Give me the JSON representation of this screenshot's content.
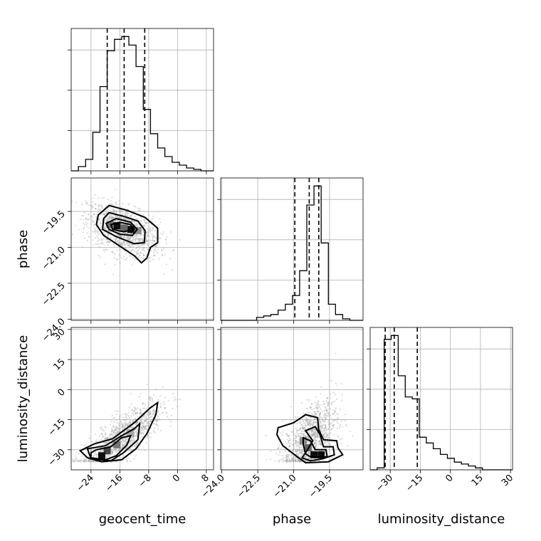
{
  "chart_data": {
    "type": "corner",
    "parameters": [
      "geocent_time",
      "phase",
      "luminosity_distance"
    ],
    "axis_labels": {
      "geocent_time": "geocent_time",
      "phase": "phase",
      "luminosity_distance": "luminosity_distance"
    },
    "ranges": {
      "geocent_time": [
        -29.5,
        10.0
      ],
      "phase": [
        -24.05,
        -18.1
      ],
      "luminosity_distance": [
        -40.0,
        31.0
      ]
    },
    "ticks": {
      "geocent_time": [
        "−24",
        "−16",
        "−8",
        "0",
        "8"
      ],
      "phase": [
        "−24.0",
        "−22.5",
        "−21.0",
        "−19.5"
      ],
      "luminosity_distance": [
        "−30",
        "−15",
        "0",
        "15",
        "30"
      ]
    },
    "tick_values": {
      "geocent_time": [
        -24,
        -16,
        -8,
        0,
        8
      ],
      "phase": [
        -24.0,
        -22.5,
        -21.0,
        -19.5
      ],
      "luminosity_distance": [
        -30,
        -15,
        0,
        15,
        30
      ]
    },
    "grid": true,
    "quantiles": {
      "geocent_time": [
        -19.5,
        -14.8,
        -9.1
      ],
      "phase": [
        -20.95,
        -20.35,
        -19.95
      ],
      "luminosity_distance": [
        -32.5,
        -28.0,
        -16.5
      ]
    },
    "histograms": {
      "geocent_time": {
        "edges": [
          -29.5,
          -27.5,
          -25.5,
          -23.5,
          -21.5,
          -19.5,
          -17.5,
          -15.5,
          -13.5,
          -11.5,
          -9.5,
          -7.5,
          -5.5,
          -3.5,
          -1.5,
          0.5,
          2.5,
          4.5,
          6.5,
          8.5,
          10.0
        ],
        "counts": [
          0,
          3,
          8,
          27,
          59,
          84,
          92,
          94,
          88,
          73,
          43,
          26,
          16,
          10,
          6,
          4,
          2,
          1,
          0,
          0
        ]
      },
      "phase": {
        "edges": [
          -24.05,
          -23.75,
          -23.45,
          -23.15,
          -22.85,
          -22.55,
          -22.25,
          -21.95,
          -21.65,
          -21.35,
          -21.05,
          -20.75,
          -20.45,
          -20.15,
          -19.85,
          -19.55,
          -19.25,
          -18.95,
          -18.65,
          -18.35,
          -18.1
        ],
        "counts": [
          0,
          0,
          0,
          0,
          0,
          2,
          3,
          4,
          7,
          11,
          17,
          34,
          79,
          92,
          53,
          11,
          4,
          1,
          0,
          0
        ]
      },
      "luminosity_distance": {
        "edges": [
          -40.0,
          -36.5,
          -33.0,
          -29.5,
          -26.0,
          -22.5,
          -19.0,
          -15.5,
          -12.0,
          -8.5,
          -5.0,
          -1.5,
          2.0,
          5.5,
          9.0,
          12.5,
          16.0,
          19.5,
          23.0,
          26.5,
          31.0
        ],
        "counts": [
          0,
          1,
          68,
          70,
          49,
          38,
          37,
          17,
          14,
          11,
          8,
          6,
          4,
          3,
          2,
          1,
          0,
          0,
          0,
          0
        ]
      }
    },
    "density_cells": [
      {
        "pair": "phase|geocent_time",
        "x": -16.8,
        "y": -20.1,
        "level": 0.95
      },
      {
        "pair": "phase|geocent_time",
        "x": -12.9,
        "y": -20.25,
        "level": 0.95
      },
      {
        "pair": "phase|geocent_time",
        "x": -14.8,
        "y": -20.2,
        "level": 0.6
      },
      {
        "pair": "phase|geocent_time",
        "x": -18.7,
        "y": -20.05,
        "level": 0.55
      },
      {
        "pair": "phase|geocent_time",
        "x": -11.0,
        "y": -20.3,
        "level": 0.45
      },
      {
        "pair": "luminosity_distance|geocent_time",
        "x": -19.5,
        "y": -30.5,
        "level": 0.75
      },
      {
        "pair": "luminosity_distance|geocent_time",
        "x": -21.0,
        "y": -33.0,
        "level": 0.95
      },
      {
        "pair": "luminosity_distance|geocent_time",
        "x": -16.8,
        "y": -27.5,
        "level": 0.55
      },
      {
        "pair": "luminosity_distance|geocent_time",
        "x": -13.0,
        "y": -21.5,
        "level": 0.35
      },
      {
        "pair": "luminosity_distance|phase",
        "x": -20.15,
        "y": -32.5,
        "level": 0.95
      },
      {
        "pair": "luminosity_distance|phase",
        "x": -19.85,
        "y": -32.5,
        "level": 0.95
      },
      {
        "pair": "luminosity_distance|phase",
        "x": -20.4,
        "y": -29.0,
        "level": 0.6
      },
      {
        "pair": "luminosity_distance|phase",
        "x": -20.6,
        "y": -25.5,
        "level": 0.45
      }
    ],
    "contours": {
      "phase|geocent_time": [
        [
          [
            -20.5,
            -19.8
          ],
          [
            -19.0,
            -19.55
          ],
          [
            -15.0,
            -19.7
          ],
          [
            -11.0,
            -19.9
          ],
          [
            -9.0,
            -20.3
          ],
          [
            -9.2,
            -20.8
          ],
          [
            -12.0,
            -20.85
          ],
          [
            -17.0,
            -20.55
          ],
          [
            -20.8,
            -20.25
          ]
        ],
        [
          [
            -19.8,
            -20.0
          ],
          [
            -17.0,
            -19.8
          ],
          [
            -13.0,
            -19.95
          ],
          [
            -11.2,
            -20.25
          ],
          [
            -12.5,
            -20.5
          ],
          [
            -16.0,
            -20.45
          ],
          [
            -19.0,
            -20.25
          ]
        ],
        [
          [
            -18.5,
            -20.05
          ],
          [
            -16.0,
            -19.95
          ],
          [
            -13.0,
            -20.05
          ],
          [
            -12.0,
            -20.25
          ],
          [
            -15.0,
            -20.35
          ],
          [
            -18.0,
            -20.25
          ]
        ],
        [
          [
            -22.0,
            -19.65
          ],
          [
            -19.0,
            -19.25
          ],
          [
            -14.0,
            -19.45
          ],
          [
            -9.0,
            -19.75
          ],
          [
            -5.5,
            -20.2
          ],
          [
            -5.5,
            -20.8
          ],
          [
            -7.5,
            -21.0
          ],
          [
            -8.5,
            -21.45
          ],
          [
            -10.0,
            -21.65
          ],
          [
            -12.0,
            -21.35
          ],
          [
            -16.0,
            -20.95
          ],
          [
            -20.5,
            -20.5
          ],
          [
            -22.5,
            -20.05
          ]
        ]
      ],
      "luminosity_distance|geocent_time": [
        [
          [
            -24.0,
            -34.0
          ],
          [
            -20.0,
            -35.0
          ],
          [
            -17.0,
            -33.0
          ],
          [
            -14.0,
            -27.5
          ],
          [
            -13.0,
            -23.0
          ],
          [
            -15.5,
            -24.0
          ],
          [
            -18.5,
            -28.5
          ],
          [
            -22.5,
            -30.0
          ],
          [
            -24.0,
            -31.5
          ]
        ],
        [
          [
            -25.0,
            -29.5
          ],
          [
            -20.0,
            -28.0
          ],
          [
            -15.5,
            -23.0
          ],
          [
            -12.0,
            -19.5
          ],
          [
            -10.5,
            -17.0
          ],
          [
            -11.0,
            -25.0
          ],
          [
            -15.0,
            -31.5
          ],
          [
            -18.5,
            -35.5
          ],
          [
            -24.0,
            -34.5
          ]
        ],
        [
          [
            -27.0,
            -30.5
          ],
          [
            -23.0,
            -27.0
          ],
          [
            -18.0,
            -24.5
          ],
          [
            -12.0,
            -16.5
          ],
          [
            -7.5,
            -9.0
          ],
          [
            -5.5,
            -6.5
          ],
          [
            -6.0,
            -12.5
          ],
          [
            -8.5,
            -22.0
          ],
          [
            -11.5,
            -29.5
          ],
          [
            -15.5,
            -35.0
          ],
          [
            -21.0,
            -36.0
          ],
          [
            -25.0,
            -34.0
          ]
        ]
      ],
      "luminosity_distance|phase": [
        [
          [
            -20.3,
            -33.5
          ],
          [
            -19.6,
            -33.5
          ],
          [
            -19.65,
            -30.0
          ],
          [
            -20.1,
            -30.0
          ],
          [
            -20.3,
            -25.5
          ],
          [
            -20.6,
            -24.0
          ],
          [
            -20.6,
            -27.5
          ],
          [
            -20.5,
            -32.0
          ]
        ],
        [
          [
            -20.5,
            -31.5
          ],
          [
            -20.2,
            -25.5
          ],
          [
            -20.5,
            -20.5
          ],
          [
            -20.1,
            -18.5
          ],
          [
            -19.9,
            -22.5
          ],
          [
            -19.75,
            -28.5
          ],
          [
            -19.35,
            -28.5
          ],
          [
            -19.3,
            -32.5
          ],
          [
            -19.8,
            -34.5
          ],
          [
            -20.3,
            -35.5
          ],
          [
            -20.65,
            -34.0
          ]
        ],
        [
          [
            -21.65,
            -19.0
          ],
          [
            -21.0,
            -16.5
          ],
          [
            -20.5,
            -12.5
          ],
          [
            -20.0,
            -14.0
          ],
          [
            -19.95,
            -20.0
          ],
          [
            -19.75,
            -25.0
          ],
          [
            -19.2,
            -25.5
          ],
          [
            -19.15,
            -29.0
          ],
          [
            -18.95,
            -32.5
          ],
          [
            -19.55,
            -36.0
          ],
          [
            -20.5,
            -36.5
          ],
          [
            -20.85,
            -33.5
          ],
          [
            -21.45,
            -28.0
          ],
          [
            -21.7,
            -22.5
          ]
        ]
      ]
    }
  }
}
